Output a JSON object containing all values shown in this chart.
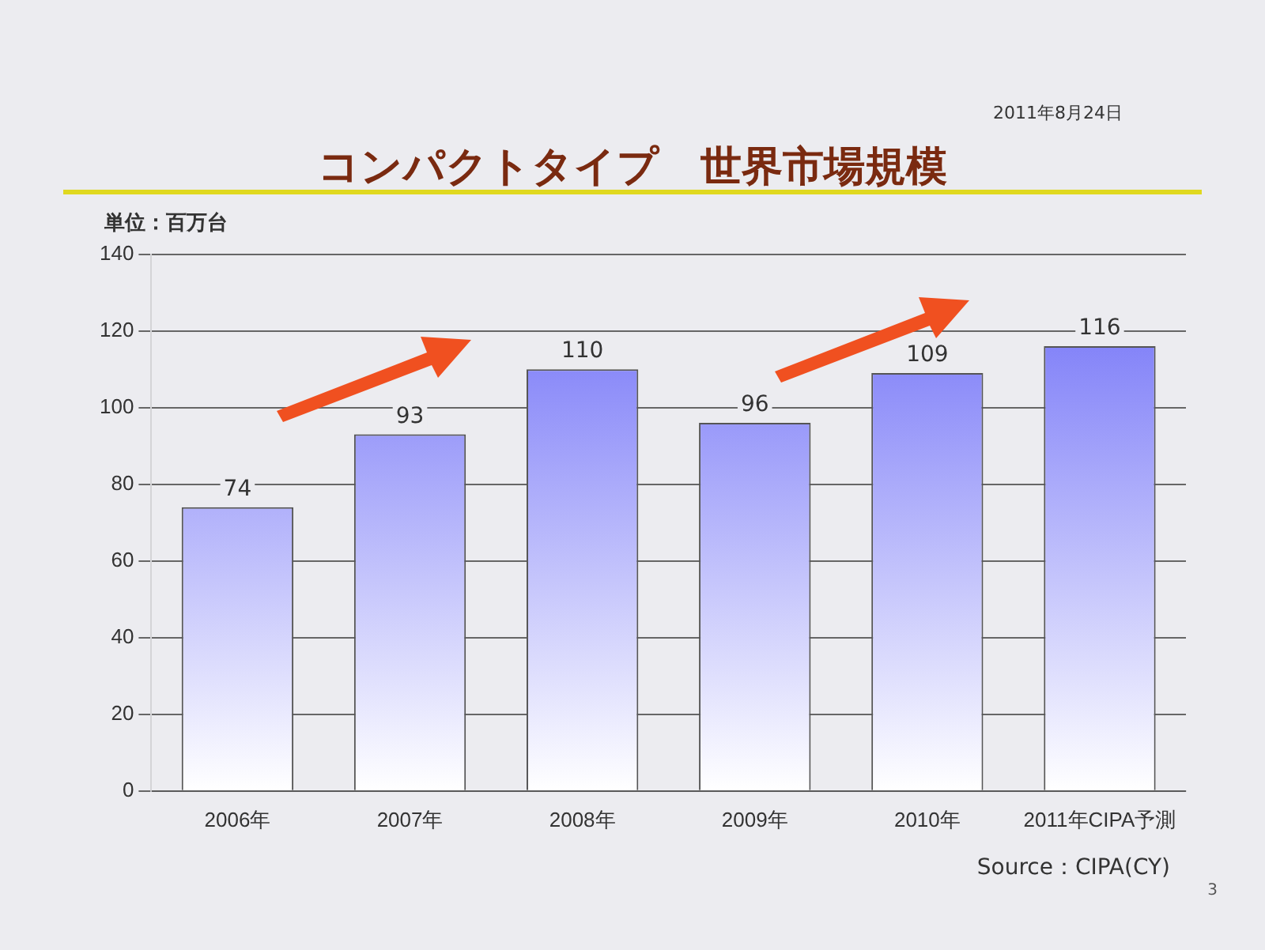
{
  "chart_data": {
    "type": "bar",
    "title": "コンパクトタイプ　世界市場規模",
    "ylabel": "単位：百万台",
    "categories": [
      "2006年",
      "2007年",
      "2008年",
      "2009年",
      "2010年",
      "2011年CIPA予測"
    ],
    "values": [
      74,
      93,
      110,
      96,
      109,
      116
    ],
    "color": "#6b6bf7",
    "ylim": [
      0,
      140
    ],
    "yticks": [
      0,
      20,
      40,
      60,
      80,
      100,
      120,
      140
    ],
    "grid": "y",
    "data_labels": true,
    "annotations": [
      "2011年8月24日",
      "Source：CIPA(CY)",
      "3"
    ]
  }
}
